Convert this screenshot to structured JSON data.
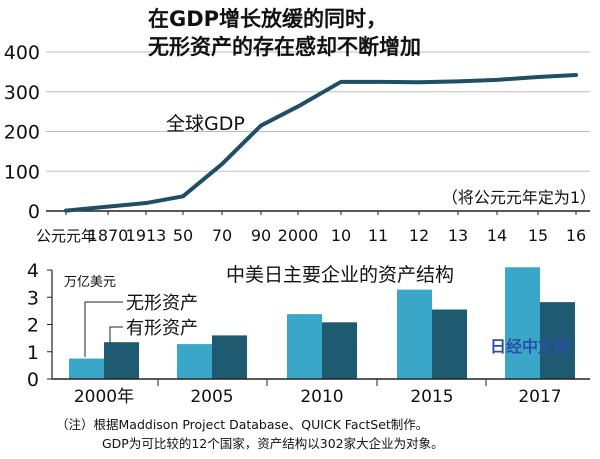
{
  "title_lines": [
    "在GDP增长放缓的同时，",
    "无形资产的存在感却不断增加"
  ],
  "chart_data": [
    {
      "type": "line",
      "series": [
        {
          "name": "全球GDP",
          "values": [
            1,
            11,
            20,
            37,
            118,
            215,
            263,
            325,
            325,
            324,
            326,
            330,
            337,
            342
          ]
        }
      ],
      "x": [
        "公元元年",
        "1870",
        "1913",
        "50",
        "70",
        "90",
        "2000",
        "10",
        "11",
        "12",
        "13",
        "14",
        "15",
        "16"
      ],
      "yticks": [
        0,
        100,
        200,
        300,
        400
      ],
      "ylim": [
        0,
        400
      ],
      "annotation": "（将公元元年定为1）",
      "color": "#1e4f66"
    },
    {
      "type": "bar",
      "title": "中美日主要企业的资产结构",
      "ylabel": "万亿美元",
      "categories": [
        "2000年",
        "2005",
        "2010",
        "2015",
        "2017"
      ],
      "series": [
        {
          "name": "无形资产",
          "values": [
            0.75,
            1.28,
            2.38,
            3.28,
            4.1
          ],
          "color": "#3aa6c8"
        },
        {
          "name": "有形资产",
          "values": [
            1.35,
            1.6,
            2.08,
            2.55,
            2.82
          ],
          "color": "#1e5a70"
        }
      ],
      "yticks": [
        0,
        1,
        2,
        3,
        4
      ],
      "ylim": [
        0,
        4
      ]
    }
  ],
  "watermark": "日经中文网",
  "note_lines": [
    "（注）根据Maddison Project Database、QUICK FactSet制作。",
    "GDP为可比较的12个国家，资产结构以302家大企业为对象。"
  ]
}
